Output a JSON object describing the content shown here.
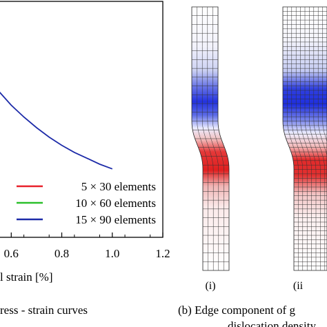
{
  "chart_data": [
    {
      "type": "line",
      "xlabel": "l strain [%]",
      "xticks": [
        "0.6",
        "0.8",
        "1.0",
        "1.2"
      ],
      "xlim": [
        0.55,
        1.2
      ],
      "series": [
        {
          "name": "5 × 30 elements",
          "color": "#e8202a",
          "x": [],
          "y": []
        },
        {
          "name": "10 × 60 elements",
          "color": "#2bc02b",
          "x": [],
          "y": []
        },
        {
          "name": "15 × 90 elements",
          "color": "#1c2aa8",
          "x": [
            0.55,
            0.6,
            0.65,
            0.7,
            0.75,
            0.8,
            0.85,
            0.9,
            0.95,
            1.0
          ],
          "y": [
            0.62,
            0.56,
            0.51,
            0.465,
            0.425,
            0.39,
            0.36,
            0.335,
            0.31,
            0.29
          ]
        }
      ],
      "legend_position": "bottom-right",
      "caption": "ress - strain curves"
    },
    {
      "type": "heatmap",
      "panels": [
        {
          "label": "(i)"
        },
        {
          "label": "(ii"
        }
      ],
      "caption_line1": "(b) Edge component of g",
      "caption_line2": "dislocation density"
    }
  ]
}
